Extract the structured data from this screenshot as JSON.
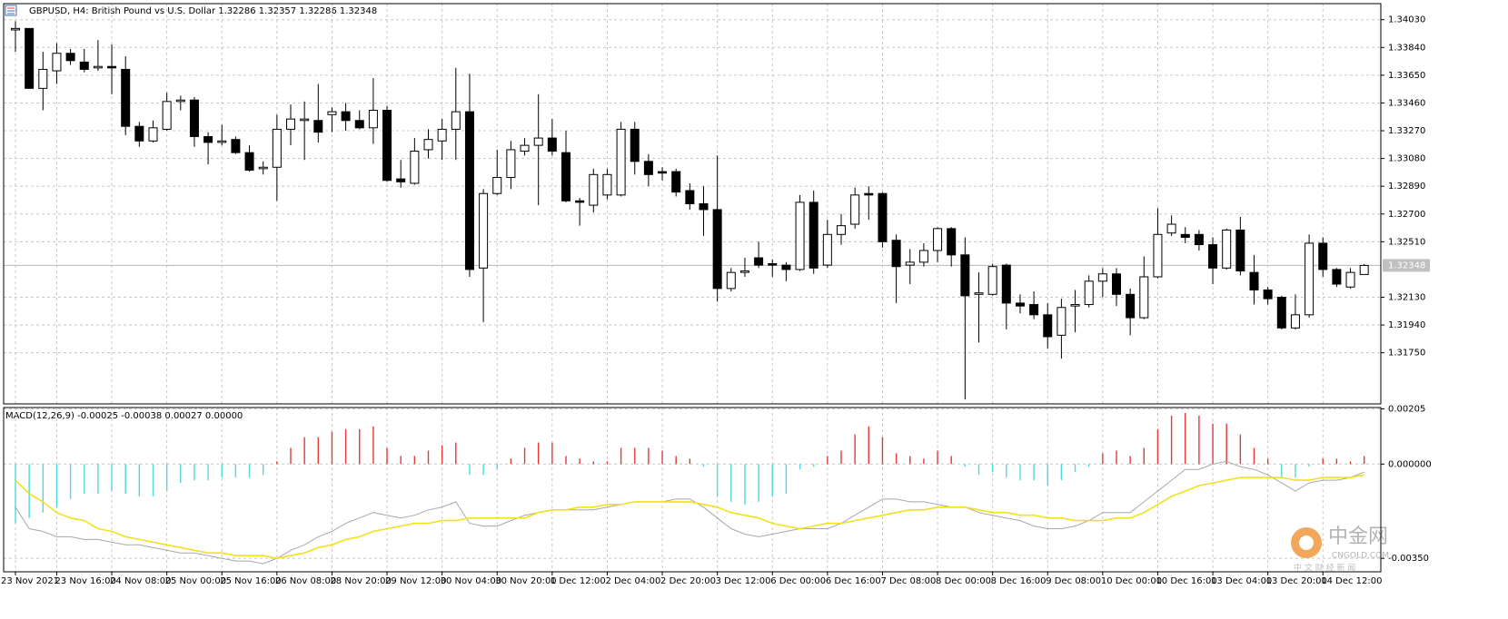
{
  "chart_data": [
    {
      "type": "candlestick",
      "title": "GBPUSD, H4:  British Pound vs U.S. Dollar  1.32286 1.32357 1.32286 1.32348",
      "categories": [
        "23 Nov 2021",
        null,
        null,
        "23 Nov 16:00",
        null,
        null,
        null,
        "24 Nov 08:00",
        null,
        null,
        null,
        "25 Nov 00:00",
        null,
        null,
        null,
        "25 Nov 16:00",
        null,
        null,
        null,
        "26 Nov 08:00",
        null,
        null,
        null,
        "28 Nov 20:00",
        null,
        null,
        null,
        "29 Nov 12:00",
        null,
        null,
        null,
        "30 Nov 04:00",
        null,
        null,
        null,
        "30 Nov 20:00",
        null,
        null,
        null,
        "1 Dec 12:00",
        null,
        null,
        null,
        "2 Dec 04:00",
        null,
        null,
        null,
        "2 Dec 20:00",
        null,
        null,
        null,
        "3 Dec 12:00",
        null,
        null,
        null,
        "6 Dec 00:00",
        null,
        null,
        null,
        "6 Dec 16:00",
        null,
        null,
        null,
        "7 Dec 08:00",
        null,
        null,
        null,
        "8 Dec 00:00",
        null,
        null,
        null,
        "8 Dec 16:00",
        null,
        null,
        null,
        "9 Dec 08:00",
        null,
        null,
        null,
        "10 Dec 00:00",
        null,
        null,
        null,
        "10 Dec 16:00",
        null,
        null,
        null,
        "13 Dec 04:00",
        null,
        null,
        null,
        "13 Dec 20:00",
        null,
        null,
        null,
        "14 Dec 12:00",
        null,
        null,
        null
      ],
      "open": [
        1.3396,
        1.3397,
        1.3356,
        1.3368,
        1.338,
        1.3374,
        1.337,
        1.3371,
        1.3369,
        1.333,
        1.332,
        1.3328,
        1.3347,
        1.3348,
        1.3323,
        1.3319,
        1.3321,
        1.3312,
        1.3301,
        1.3302,
        1.3328,
        1.3334,
        1.3334,
        1.3338,
        1.334,
        1.3334,
        1.3329,
        1.3341,
        1.3294,
        1.3291,
        1.3314,
        1.332,
        1.3328,
        1.334,
        1.3233,
        1.3284,
        1.3295,
        1.3313,
        1.3317,
        1.3322,
        1.3312,
        1.3279,
        1.3276,
        1.3283,
        1.3283,
        1.3328,
        1.3306,
        1.3299,
        1.3299,
        1.3286,
        1.3277,
        1.3273,
        1.3219,
        1.323,
        1.324,
        1.3236,
        1.3235,
        1.3232,
        1.3278,
        1.3235,
        1.3256,
        1.3263,
        1.3284,
        1.3284,
        1.3252,
        1.3235,
        1.3237,
        1.3245,
        1.326,
        1.3242,
        1.3215,
        1.3215,
        1.3235,
        1.3209,
        1.3208,
        1.3201,
        1.3187,
        1.3207,
        1.3208,
        1.3224,
        1.3229,
        1.3215,
        1.3199,
        1.3227,
        1.3257,
        1.3256,
        1.3256,
        1.3249,
        1.3233,
        1.3259,
        1.323,
        1.3218,
        1.3213,
        1.3192,
        1.3201,
        1.325,
        1.3232,
        1.322,
        1.32286
      ],
      "high": [
        1.3402,
        1.3397,
        1.3381,
        1.3387,
        1.3383,
        1.3383,
        1.3389,
        1.3386,
        1.3378,
        1.3333,
        1.3334,
        1.3353,
        1.3351,
        1.335,
        1.3326,
        1.3331,
        1.3323,
        1.3317,
        1.3306,
        1.3338,
        1.3345,
        1.3347,
        1.3359,
        1.3343,
        1.3346,
        1.3341,
        1.3363,
        1.3344,
        1.3307,
        1.3322,
        1.3328,
        1.3335,
        1.337,
        1.3366,
        1.3287,
        1.3314,
        1.332,
        1.3322,
        1.3352,
        1.3335,
        1.3327,
        1.3281,
        1.3301,
        1.3301,
        1.3333,
        1.3333,
        1.3311,
        1.3302,
        1.3301,
        1.3291,
        1.3289,
        1.331,
        1.3233,
        1.324,
        1.3251,
        1.3239,
        1.3237,
        1.3283,
        1.3286,
        1.3266,
        1.327,
        1.3288,
        1.3289,
        1.3285,
        1.3256,
        1.3246,
        1.325,
        1.3261,
        1.3261,
        1.3254,
        1.323,
        1.3236,
        1.3236,
        1.3215,
        1.3217,
        1.3209,
        1.3212,
        1.3218,
        1.3228,
        1.3233,
        1.3233,
        1.3219,
        1.3241,
        1.3274,
        1.3269,
        1.3261,
        1.3259,
        1.3254,
        1.326,
        1.3268,
        1.3242,
        1.322,
        1.3214,
        1.3215,
        1.3256,
        1.3254,
        1.3233,
        1.3233,
        1.32357
      ],
      "low": [
        1.3381,
        1.3356,
        1.3341,
        1.3359,
        1.3372,
        1.3367,
        1.3368,
        1.3352,
        1.3324,
        1.3316,
        1.3319,
        1.3327,
        1.3341,
        1.3316,
        1.3304,
        1.3317,
        1.3311,
        1.3299,
        1.3297,
        1.3279,
        1.3317,
        1.3307,
        1.3319,
        1.3326,
        1.3327,
        1.3328,
        1.3318,
        1.3292,
        1.3288,
        1.329,
        1.3308,
        1.3307,
        1.3307,
        1.3227,
        1.3196,
        1.3283,
        1.3287,
        1.331,
        1.3276,
        1.331,
        1.3278,
        1.3262,
        1.3271,
        1.328,
        1.3282,
        1.3297,
        1.3289,
        1.3293,
        1.3282,
        1.3273,
        1.3255,
        1.321,
        1.3217,
        1.3227,
        1.3233,
        1.3227,
        1.3224,
        1.3231,
        1.3229,
        1.3233,
        1.3249,
        1.326,
        1.3266,
        1.3247,
        1.3209,
        1.3222,
        1.3234,
        1.3237,
        1.3234,
        1.3143,
        1.3182,
        1.3214,
        1.3191,
        1.3202,
        1.3198,
        1.3178,
        1.3171,
        1.3189,
        1.3206,
        1.3213,
        1.3207,
        1.3187,
        1.3198,
        1.3226,
        1.3255,
        1.325,
        1.3245,
        1.3222,
        1.3232,
        1.3228,
        1.3208,
        1.3208,
        1.3191,
        1.3191,
        1.3199,
        1.3227,
        1.322,
        1.3219,
        1.32286
      ],
      "close": [
        1.3397,
        1.3356,
        1.3369,
        1.338,
        1.3375,
        1.3369,
        1.3371,
        1.337,
        1.333,
        1.332,
        1.3329,
        1.3347,
        1.3348,
        1.3323,
        1.3319,
        1.332,
        1.3312,
        1.33,
        1.3302,
        1.3328,
        1.3335,
        1.3335,
        1.3326,
        1.334,
        1.3334,
        1.3329,
        1.3341,
        1.3293,
        1.3292,
        1.3313,
        1.3321,
        1.3328,
        1.334,
        1.3232,
        1.3284,
        1.3295,
        1.3314,
        1.3317,
        1.3322,
        1.3313,
        1.3279,
        1.3278,
        1.3297,
        1.3297,
        1.3328,
        1.3306,
        1.3297,
        1.3298,
        1.3285,
        1.3277,
        1.3273,
        1.3219,
        1.323,
        1.3231,
        1.3235,
        1.3235,
        1.3232,
        1.3278,
        1.3233,
        1.3256,
        1.3262,
        1.3283,
        1.3283,
        1.3251,
        1.3234,
        1.3237,
        1.3245,
        1.326,
        1.3242,
        1.3214,
        1.3216,
        1.3234,
        1.3209,
        1.3207,
        1.3201,
        1.3186,
        1.3206,
        1.3208,
        1.3224,
        1.3229,
        1.3215,
        1.3199,
        1.3227,
        1.3256,
        1.3263,
        1.3254,
        1.3249,
        1.3233,
        1.3259,
        1.3231,
        1.3218,
        1.3212,
        1.3192,
        1.3201,
        1.325,
        1.3232,
        1.3222,
        1.323,
        1.32348
      ],
      "up_color": "#ffffff",
      "down_color": "#000000",
      "ylim": [
        1.314,
        1.3414
      ],
      "yticks": [
        {
          "value": 1.3403,
          "label": "1.34030"
        },
        {
          "value": 1.3384,
          "label": "1.33840"
        },
        {
          "value": 1.3365,
          "label": "1.33650"
        },
        {
          "value": 1.3346,
          "label": "1.33460"
        },
        {
          "value": 1.3327,
          "label": "1.33270"
        },
        {
          "value": 1.3308,
          "label": "1.33080"
        },
        {
          "value": 1.3289,
          "label": "1.32890"
        },
        {
          "value": 1.327,
          "label": "1.32700"
        },
        {
          "value": 1.3251,
          "label": "1.32510"
        },
        {
          "value": 1.3213,
          "label": "1.32130"
        },
        {
          "value": 1.3194,
          "label": "1.31940"
        },
        {
          "value": 1.3175,
          "label": "1.31750"
        }
      ],
      "bid_line": {
        "value": 1.32348,
        "label": "1.32348"
      },
      "grid": true
    },
    {
      "type": "macd",
      "title": "MACD(12,26,9) -0.00025 -0.00038 0.00027 0.00000",
      "histogram": {
        "up_color": "#e53935",
        "down_color": "#4dd9e0",
        "values": [
          -0.0022,
          -0.002,
          -0.0018,
          -0.0016,
          -0.0013,
          -0.0011,
          -0.0011,
          -0.001,
          -0.0011,
          -0.0012,
          -0.0012,
          -0.001,
          -0.0007,
          -0.0006,
          -0.0006,
          -0.0005,
          -0.0005,
          -0.0005,
          -0.0004,
          0.0001,
          0.0006,
          0.001,
          0.001,
          0.0012,
          0.0013,
          0.0013,
          0.0014,
          0.0006,
          0.0003,
          0.0003,
          0.0005,
          0.0007,
          0.0008,
          -0.0004,
          -0.0004,
          -0.0002,
          0.0002,
          0.0006,
          0.0008,
          0.0008,
          0.0003,
          0.0002,
          0.0001,
          0.0001,
          0.0006,
          0.0006,
          0.0006,
          0.0005,
          0.0003,
          0.0002,
          -0.0001,
          -0.0012,
          -0.0014,
          -0.0015,
          -0.0014,
          -0.0012,
          -0.0011,
          -0.0002,
          -0.0001,
          0.0003,
          0.0005,
          0.0011,
          0.0014,
          0.001,
          0.0004,
          0.0003,
          0.0002,
          0.0005,
          0.0003,
          -0.0001,
          -0.0004,
          -0.0003,
          -0.0005,
          -0.0006,
          -0.0006,
          -0.0008,
          -0.0006,
          -0.0003,
          -0.0001,
          0.0004,
          0.0005,
          0.0003,
          0.0006,
          0.0013,
          0.0018,
          0.0019,
          0.0018,
          0.0015,
          0.0015,
          0.0011,
          0.0006,
          0.0002,
          -0.0005,
          -0.0005,
          -0.0001,
          0.0002,
          0.0002,
          0.0001,
          0.0003
        ]
      },
      "lines": [
        {
          "color": "#a8a8a8",
          "values": [
            -0.0016,
            -0.0024,
            -0.0025,
            -0.0027,
            -0.0027,
            -0.0028,
            -0.0028,
            -0.0029,
            -0.003,
            -0.003,
            -0.0031,
            -0.0032,
            -0.0033,
            -0.0033,
            -0.0034,
            -0.0035,
            -0.0036,
            -0.0036,
            -0.0037,
            -0.0035,
            -0.0032,
            -0.003,
            -0.0027,
            -0.0025,
            -0.0022,
            -0.002,
            -0.0018,
            -0.0019,
            -0.002,
            -0.0019,
            -0.0017,
            -0.0016,
            -0.0014,
            -0.0022,
            -0.0023,
            -0.0023,
            -0.0021,
            -0.0019,
            -0.0018,
            -0.0017,
            -0.0017,
            -0.0017,
            -0.0017,
            -0.0016,
            -0.0015,
            -0.0014,
            -0.0014,
            -0.0014,
            -0.0013,
            -0.0013,
            -0.0016,
            -0.002,
            -0.0024,
            -0.0026,
            -0.0027,
            -0.0026,
            -0.0025,
            -0.0024,
            -0.0024,
            -0.0024,
            -0.0022,
            -0.0019,
            -0.0016,
            -0.0013,
            -0.0013,
            -0.0014,
            -0.0014,
            -0.0015,
            -0.0016,
            -0.0016,
            -0.0018,
            -0.0019,
            -0.002,
            -0.0021,
            -0.0023,
            -0.0024,
            -0.0024,
            -0.0023,
            -0.0021,
            -0.0018,
            -0.0018,
            -0.0018,
            -0.0014,
            -0.001,
            -0.0006,
            -0.0002,
            -0.0002,
            0,
            0.0001,
            -0.0001,
            -0.0002,
            -0.0004,
            -0.0007,
            -0.001,
            -0.0007,
            -0.0006,
            -0.0006,
            -0.0005,
            -0.0003
          ]
        },
        {
          "color": "#f2e11c",
          "values": [
            -0.0006,
            -0.0011,
            -0.0014,
            -0.0018,
            -0.002,
            -0.0021,
            -0.0024,
            -0.0025,
            -0.0027,
            -0.0028,
            -0.0029,
            -0.003,
            -0.0031,
            -0.0032,
            -0.0033,
            -0.0033,
            -0.0034,
            -0.0034,
            -0.0034,
            -0.0035,
            -0.0034,
            -0.0033,
            -0.0031,
            -0.003,
            -0.0028,
            -0.0027,
            -0.0025,
            -0.0024,
            -0.0023,
            -0.0022,
            -0.0022,
            -0.0021,
            -0.0021,
            -0.002,
            -0.002,
            -0.002,
            -0.002,
            -0.002,
            -0.0018,
            -0.0017,
            -0.0017,
            -0.0016,
            -0.0016,
            -0.0015,
            -0.0015,
            -0.0014,
            -0.0014,
            -0.0014,
            -0.0014,
            -0.0014,
            -0.0015,
            -0.0016,
            -0.0018,
            -0.0019,
            -0.002,
            -0.0022,
            -0.0023,
            -0.0024,
            -0.0023,
            -0.0022,
            -0.0022,
            -0.0021,
            -0.002,
            -0.0019,
            -0.0018,
            -0.0017,
            -0.0017,
            -0.0016,
            -0.0016,
            -0.0016,
            -0.0017,
            -0.0018,
            -0.0018,
            -0.0019,
            -0.0019,
            -0.002,
            -0.002,
            -0.0021,
            -0.0021,
            -0.0021,
            -0.002,
            -0.002,
            -0.0018,
            -0.0015,
            -0.0012,
            -0.001,
            -0.0008,
            -0.0007,
            -0.0006,
            -0.0005,
            -0.0005,
            -0.0005,
            -0.0005,
            -0.0006,
            -0.0006,
            -0.0005,
            -0.0005,
            -0.0005,
            -0.0004
          ]
        }
      ],
      "ylim": [
        -0.004,
        0.0021
      ],
      "yticks": [
        {
          "value": 0.00205,
          "label": "0.00205"
        },
        {
          "value": 0,
          "label": "0.000000"
        },
        {
          "value": -0.0035,
          "label": "-0.00350"
        }
      ],
      "grid": true
    }
  ],
  "watermark": {
    "name": "中金网",
    "domain": "CNGOLD.COM",
    "tagline": "中 文 财 经 新 闻"
  }
}
